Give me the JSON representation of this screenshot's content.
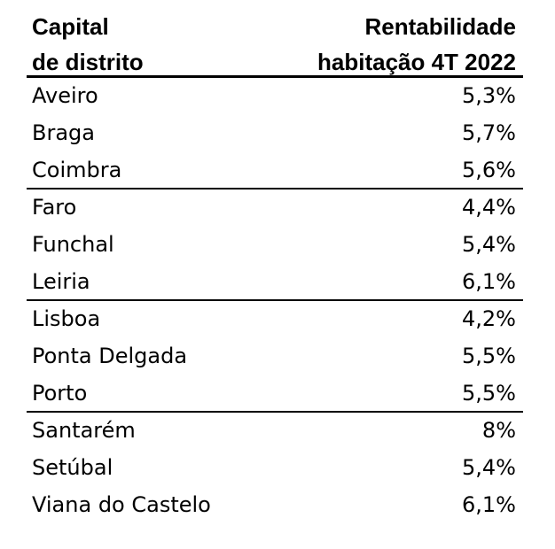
{
  "chart_data": {
    "type": "table",
    "columns": [
      "Capital de distrito",
      "Rentabilidade habitação 4T 2022"
    ],
    "header": {
      "left_line1": "Capital",
      "left_line2": "de distrito",
      "right_line1": "Rentabilidade",
      "right_line2": "habitação 4T 2022"
    },
    "rows": [
      {
        "name": "Aveiro",
        "value_label": "5,3%",
        "value": 5.3
      },
      {
        "name": "Braga",
        "value_label": "5,7%",
        "value": 5.7
      },
      {
        "name": "Coimbra",
        "value_label": "5,6%",
        "value": 5.6
      },
      {
        "name": "Faro",
        "value_label": "4,4%",
        "value": 4.4
      },
      {
        "name": "Funchal",
        "value_label": "5,4%",
        "value": 5.4
      },
      {
        "name": "Leiria",
        "value_label": "6,1%",
        "value": 6.1
      },
      {
        "name": "Lisboa",
        "value_label": "4,2%",
        "value": 4.2
      },
      {
        "name": "Ponta Delgada",
        "value_label": "5,5%",
        "value": 5.5
      },
      {
        "name": "Porto",
        "value_label": "5,5%",
        "value": 5.5
      },
      {
        "name": "Santarém",
        "value_label": "8%",
        "value": 8
      },
      {
        "name": "Setúbal",
        "value_label": "5,4%",
        "value": 5.4
      },
      {
        "name": "Viana do Castelo",
        "value_label": "6,1%",
        "value": 6.1
      }
    ],
    "group_separators_after": [
      2,
      5,
      8
    ]
  }
}
